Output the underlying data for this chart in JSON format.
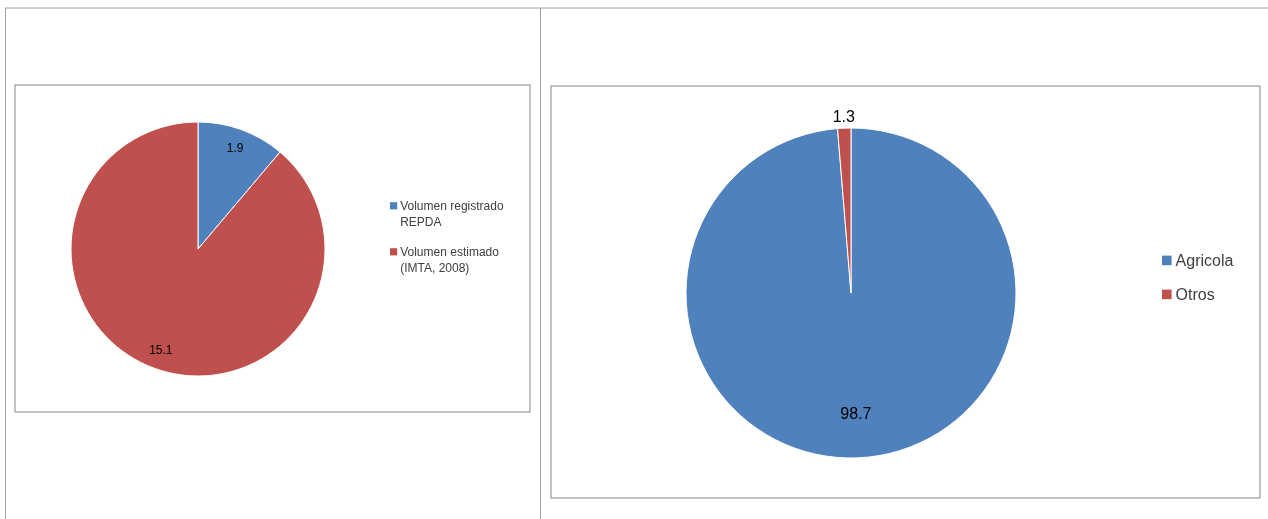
{
  "chart_data": [
    {
      "type": "pie",
      "categories": [
        "Volumen registrado REPDA",
        "Volumen estimado (IMTA, 2008)"
      ],
      "values": [
        1.9,
        15.1
      ],
      "colors": [
        "#4f81bd",
        "#c0504d"
      ],
      "data_labels": true,
      "legend": "right"
    },
    {
      "type": "pie",
      "categories": [
        "Agricola",
        "Otros"
      ],
      "values": [
        98.7,
        1.3
      ],
      "colors": [
        "#4f81bd",
        "#c0504d"
      ],
      "data_labels": true,
      "legend": "right"
    }
  ]
}
